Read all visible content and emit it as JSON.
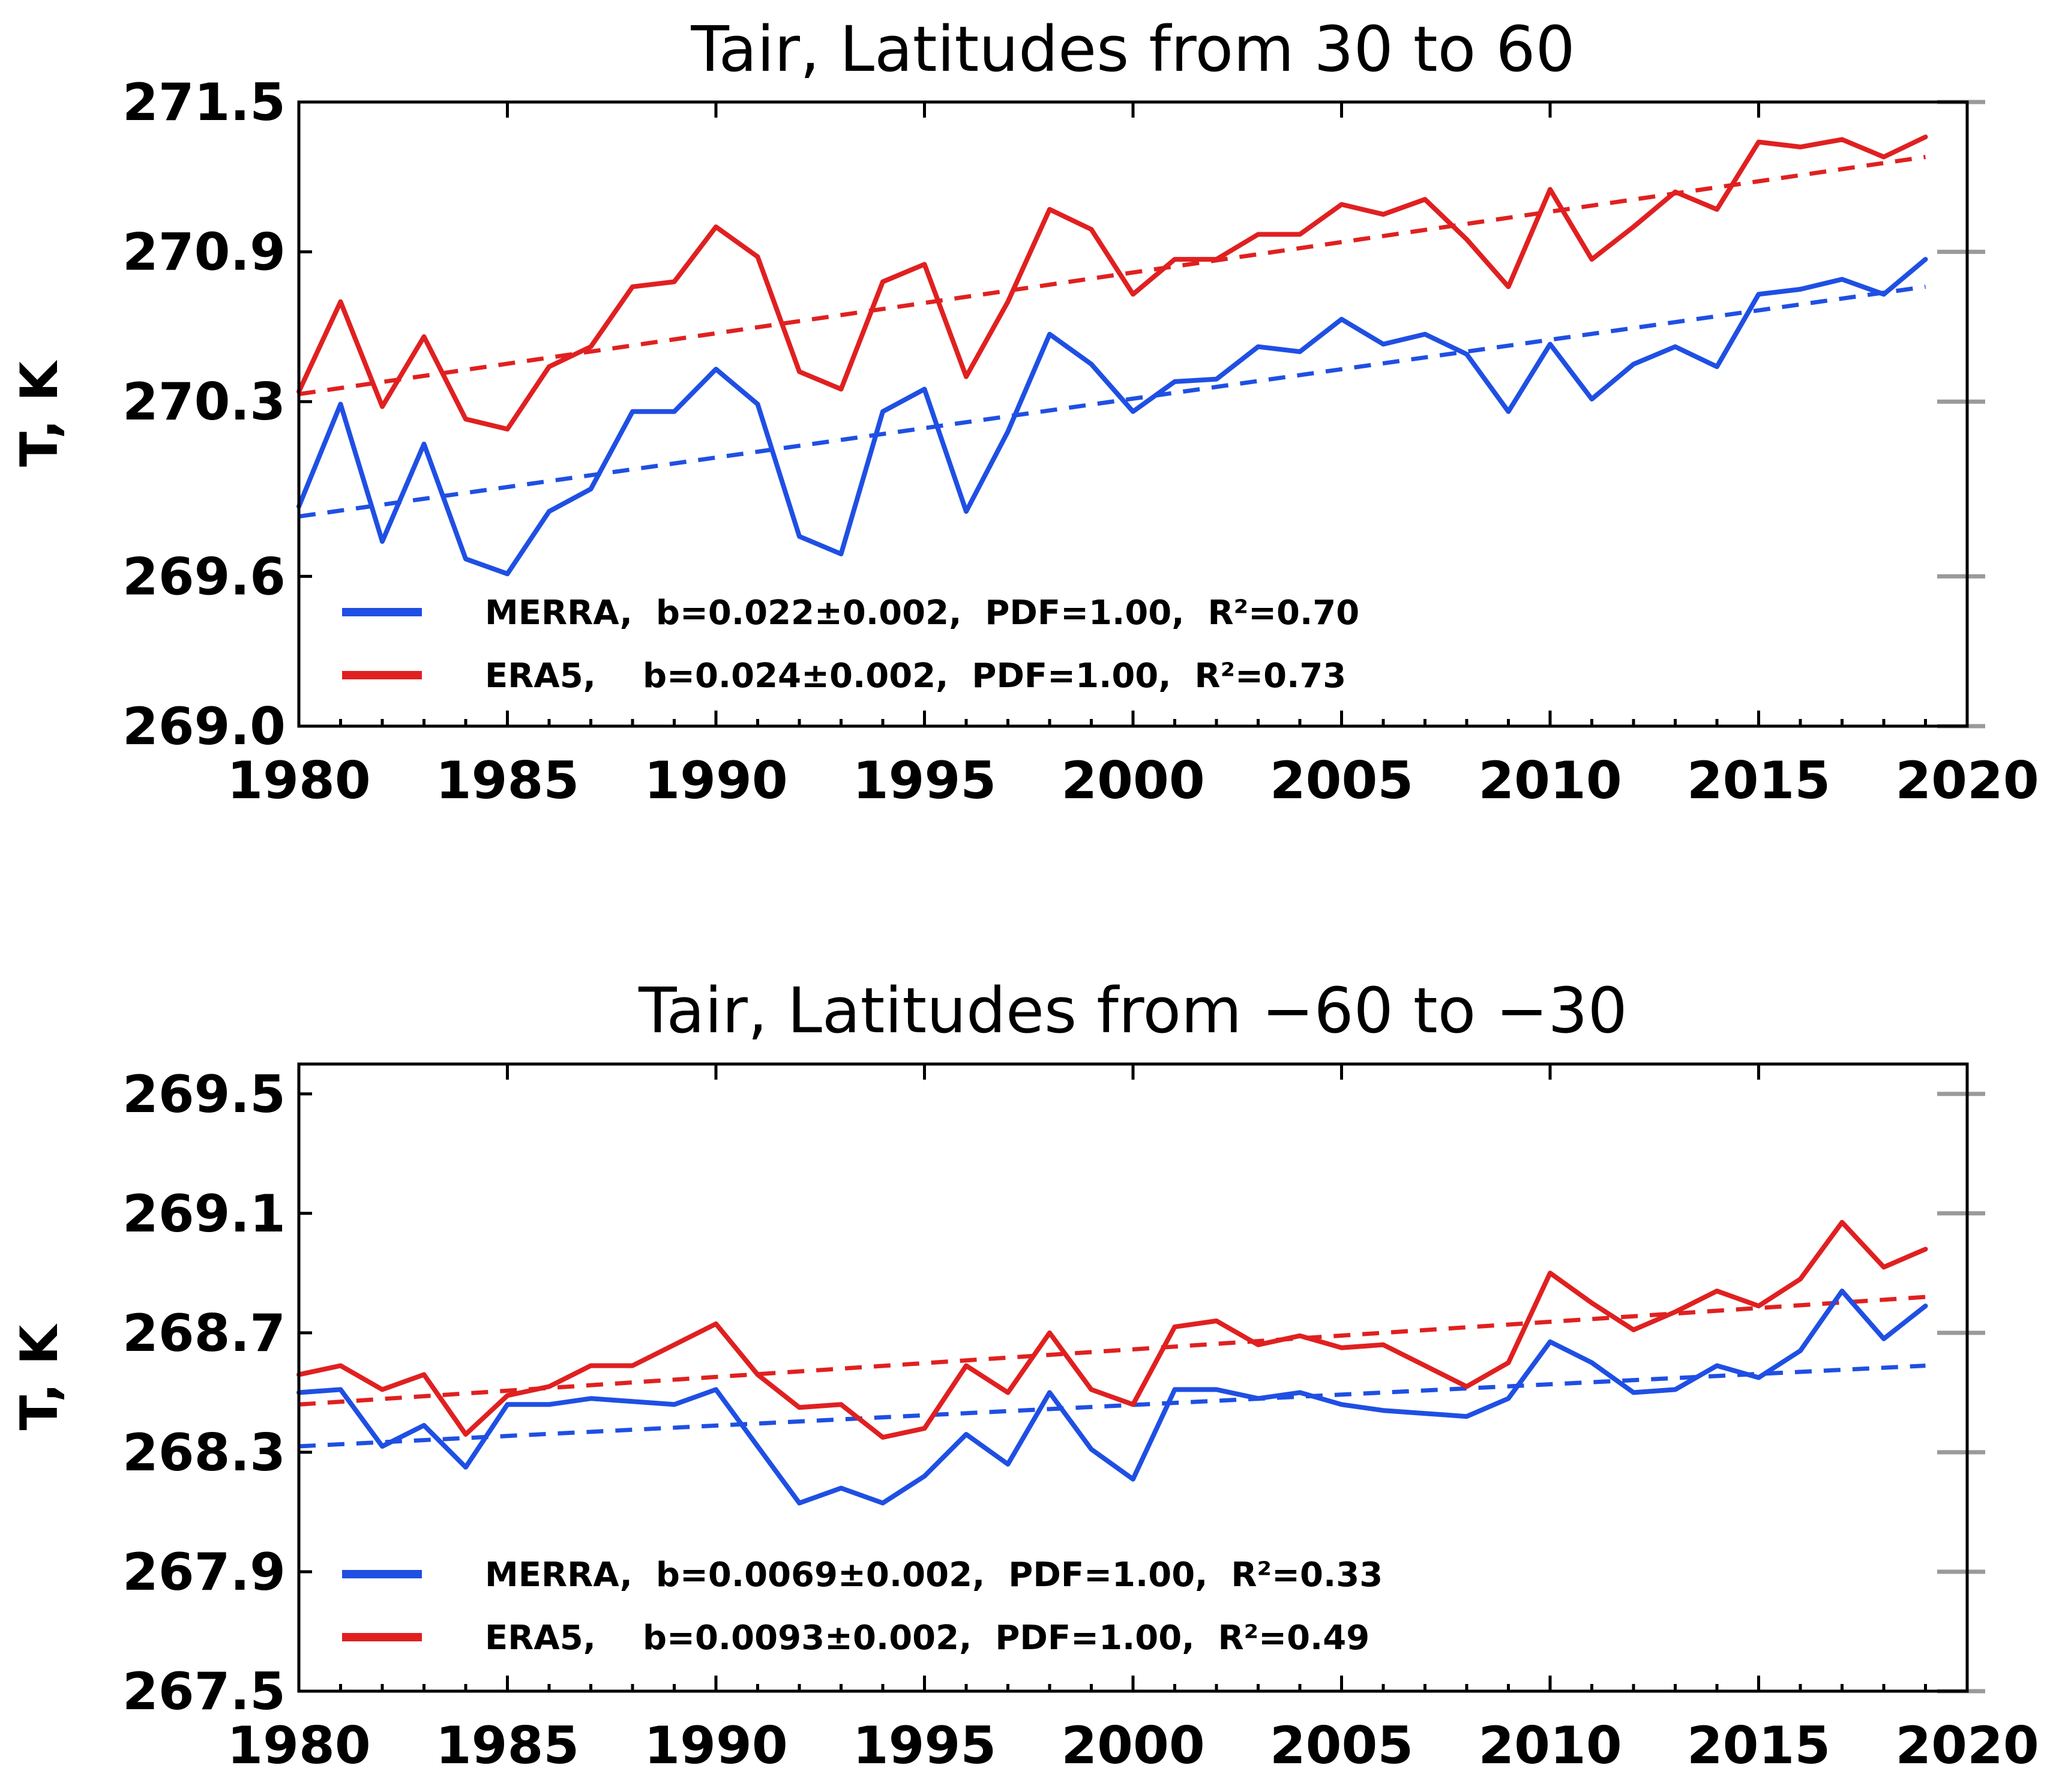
{
  "colors": {
    "merra": "#1f4fe3",
    "era5": "#e02020",
    "axis": "#000000",
    "tick_gray": "#9a9a9a",
    "background": "#ffffff"
  },
  "chart_data": [
    {
      "type": "line",
      "title": "Tair, Latitudes from 30 to 60",
      "xlabel": "",
      "ylabel": "T, K",
      "xlim": [
        1980,
        2020
      ],
      "ylim": [
        269.0,
        271.5
      ],
      "xticks": [
        1980,
        1985,
        1990,
        1995,
        2000,
        2005,
        2010,
        2015,
        2020
      ],
      "yticks": [
        269.0,
        269.6,
        270.3,
        270.9,
        271.5
      ],
      "ytick_labels": [
        "269.0",
        "269.6",
        "270.3",
        "270.9",
        "271.5"
      ],
      "x": [
        1980,
        1981,
        1982,
        1983,
        1984,
        1985,
        1986,
        1987,
        1988,
        1989,
        1990,
        1991,
        1992,
        1993,
        1994,
        1995,
        1996,
        1997,
        1998,
        1999,
        2000,
        2001,
        2002,
        2003,
        2004,
        2005,
        2006,
        2007,
        2008,
        2009,
        2010,
        2011,
        2012,
        2013,
        2014,
        2015,
        2016,
        2017,
        2018,
        2019
      ],
      "series": [
        {
          "name": "MERRA",
          "color_key": "merra",
          "values": [
            269.88,
            270.29,
            269.74,
            270.13,
            269.67,
            269.61,
            269.86,
            269.95,
            270.26,
            270.26,
            270.43,
            270.29,
            269.76,
            269.69,
            270.26,
            270.35,
            269.86,
            270.18,
            270.57,
            270.45,
            270.26,
            270.38,
            270.39,
            270.52,
            270.5,
            270.63,
            270.53,
            270.57,
            270.49,
            270.26,
            270.53,
            270.31,
            270.45,
            270.52,
            270.44,
            270.73,
            270.75,
            270.79,
            270.73,
            270.87
          ]
        },
        {
          "name": "ERA5",
          "color_key": "era5",
          "values": [
            270.34,
            270.7,
            270.28,
            270.56,
            270.23,
            270.19,
            270.44,
            270.52,
            270.76,
            270.78,
            271.0,
            270.88,
            270.42,
            270.35,
            270.78,
            270.85,
            270.4,
            270.7,
            271.07,
            270.99,
            270.73,
            270.87,
            270.87,
            270.97,
            270.97,
            271.09,
            271.05,
            271.11,
            270.95,
            270.76,
            271.15,
            270.87,
            271.0,
            271.14,
            271.07,
            271.34,
            271.32,
            271.35,
            271.28,
            271.36
          ]
        }
      ],
      "trends": [
        {
          "name": "MERRA trend",
          "color_key": "merra",
          "x": [
            1980,
            2019
          ],
          "y": [
            269.84,
            270.76
          ]
        },
        {
          "name": "ERA5 trend",
          "color_key": "era5",
          "x": [
            1980,
            2019
          ],
          "y": [
            270.33,
            271.28
          ]
        }
      ],
      "legend": [
        {
          "name": "MERRA",
          "color_key": "merra",
          "label": "MERRA,  b=0.022±0.002,  PDF=1.00,  R²=0.70"
        },
        {
          "name": "ERA5",
          "color_key": "era5",
          "label": "ERA5,    b=0.024±0.002,  PDF=1.00,  R²=0.73"
        }
      ],
      "legend_position": "bottom-left"
    },
    {
      "type": "line",
      "title": "Tair, Latitudes from −60 to −30",
      "xlabel": "",
      "ylabel": "T, K",
      "xlim": [
        1980,
        2020
      ],
      "ylim": [
        267.5,
        269.6
      ],
      "xticks": [
        1980,
        1985,
        1990,
        1995,
        2000,
        2005,
        2010,
        2015,
        2020
      ],
      "yticks": [
        267.5,
        267.9,
        268.3,
        268.7,
        269.1,
        269.5
      ],
      "ytick_labels": [
        "267.5",
        "267.9",
        "268.3",
        "268.7",
        "269.1",
        "269.5"
      ],
      "x": [
        1980,
        1981,
        1982,
        1983,
        1984,
        1985,
        1986,
        1987,
        1988,
        1989,
        1990,
        1991,
        1992,
        1993,
        1994,
        1995,
        1996,
        1997,
        1998,
        1999,
        2000,
        2001,
        2002,
        2003,
        2004,
        2005,
        2006,
        2007,
        2008,
        2009,
        2010,
        2011,
        2012,
        2013,
        2014,
        2015,
        2016,
        2017,
        2018,
        2019
      ],
      "series": [
        {
          "name": "MERRA",
          "color_key": "merra",
          "values": [
            268.5,
            268.51,
            268.32,
            268.39,
            268.25,
            268.46,
            268.46,
            268.48,
            268.47,
            268.46,
            268.51,
            268.32,
            268.13,
            268.18,
            268.13,
            268.22,
            268.36,
            268.26,
            268.5,
            268.31,
            268.21,
            268.51,
            268.51,
            268.48,
            268.5,
            268.46,
            268.44,
            268.43,
            268.42,
            268.48,
            268.67,
            268.6,
            268.5,
            268.51,
            268.59,
            268.55,
            268.64,
            268.84,
            268.68,
            268.79
          ]
        },
        {
          "name": "ERA5",
          "color_key": "era5",
          "values": [
            268.56,
            268.59,
            268.51,
            268.56,
            268.36,
            268.49,
            268.52,
            268.59,
            268.59,
            268.66,
            268.73,
            268.56,
            268.45,
            268.46,
            268.35,
            268.38,
            268.59,
            268.5,
            268.7,
            268.51,
            268.46,
            268.72,
            268.74,
            268.66,
            268.69,
            268.65,
            268.66,
            268.59,
            268.52,
            268.6,
            268.9,
            268.8,
            268.71,
            268.77,
            268.84,
            268.79,
            268.88,
            269.07,
            268.92,
            268.98
          ]
        }
      ],
      "trends": [
        {
          "name": "MERRA trend",
          "color_key": "merra",
          "x": [
            1980,
            2019
          ],
          "y": [
            268.32,
            268.59
          ]
        },
        {
          "name": "ERA5 trend",
          "color_key": "era5",
          "x": [
            1980,
            2019
          ],
          "y": [
            268.46,
            268.82
          ]
        }
      ],
      "legend": [
        {
          "name": "MERRA",
          "color_key": "merra",
          "label": "MERRA,  b=0.0069±0.002,  PDF=1.00,  R²=0.33"
        },
        {
          "name": "ERA5",
          "color_key": "era5",
          "label": "ERA5,    b=0.0093±0.002,  PDF=1.00,  R²=0.49"
        }
      ],
      "legend_position": "bottom-left"
    }
  ]
}
